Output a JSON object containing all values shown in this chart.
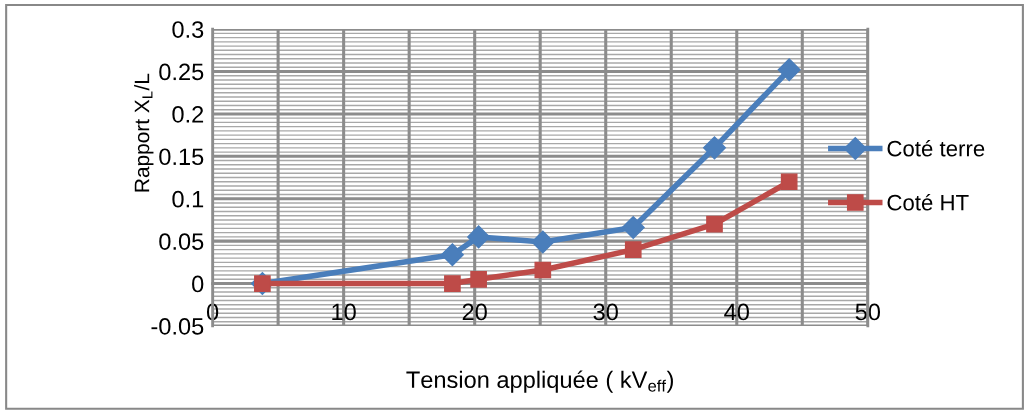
{
  "chart_data": {
    "type": "line",
    "xlabel": "Tension appliquée ( kV$_{eff}$)",
    "ylabel": "Rapport X$_{L}$/L",
    "x": [
      3.8,
      18.3,
      20.3,
      25.2,
      32.1,
      38.3,
      44.0
    ],
    "series": [
      {
        "name": "Coté terre",
        "color": "#4a7ebb",
        "marker": "diamond",
        "values": [
          0,
          0.034,
          0.055,
          0.049,
          0.066,
          0.16,
          0.252
        ]
      },
      {
        "name": "Coté HT",
        "color": "#be4b48",
        "marker": "square",
        "values": [
          0,
          0,
          0.005,
          0.016,
          0.04,
          0.07,
          0.12
        ]
      }
    ],
    "xlim": [
      0,
      50
    ],
    "ylim": [
      -0.05,
      0.3
    ],
    "xticks": [
      0,
      {
        "value": 5,
        "label": null
      },
      10,
      {
        "value": 15,
        "label": null
      },
      20,
      {
        "value": 25,
        "label": null
      },
      30,
      {
        "value": 35,
        "label": null
      },
      40,
      {
        "value": 45,
        "label": null
      },
      50
    ],
    "yticks": [
      -0.05,
      0,
      0.05,
      0.1,
      0.15,
      0.2,
      0.25,
      0.3
    ],
    "grid": true,
    "legend": "right",
    "line_style": "solid"
  }
}
